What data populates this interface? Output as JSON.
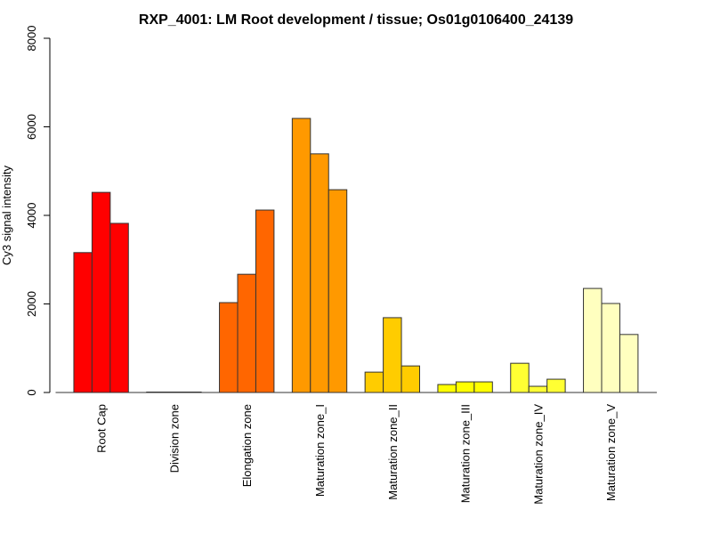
{
  "chart_data": {
    "type": "bar",
    "title": "RXP_4001: LM Root development / tissue; Os01g0106400_24139",
    "xlabel": "",
    "ylabel": "Cy3 signal intensity",
    "ylim": [
      0,
      8000
    ],
    "yticks": [
      0,
      2000,
      4000,
      6000,
      8000
    ],
    "grid": false,
    "legend": "none",
    "categories": [
      "Root Cap",
      "Division zone",
      "Elongation zone",
      "Maturation zone_I",
      "Maturation zone_II",
      "Maturation zone_III",
      "Maturation zone_IV",
      "Maturation zone_V"
    ],
    "colors": [
      "#FF0000",
      "#FF2A00",
      "#FF6600",
      "#FF9900",
      "#FFCC00",
      "#FFFF00",
      "#FFFF33",
      "#FFFFBF"
    ],
    "replicates_per_category": 3,
    "values": [
      [
        3160,
        4520,
        3820
      ],
      [
        10,
        10,
        10
      ],
      [
        2030,
        2670,
        4120
      ],
      [
        6190,
        5390,
        4580
      ],
      [
        460,
        1690,
        600
      ],
      [
        180,
        240,
        240
      ],
      [
        660,
        140,
        300
      ],
      [
        2350,
        2010,
        1310
      ]
    ]
  }
}
